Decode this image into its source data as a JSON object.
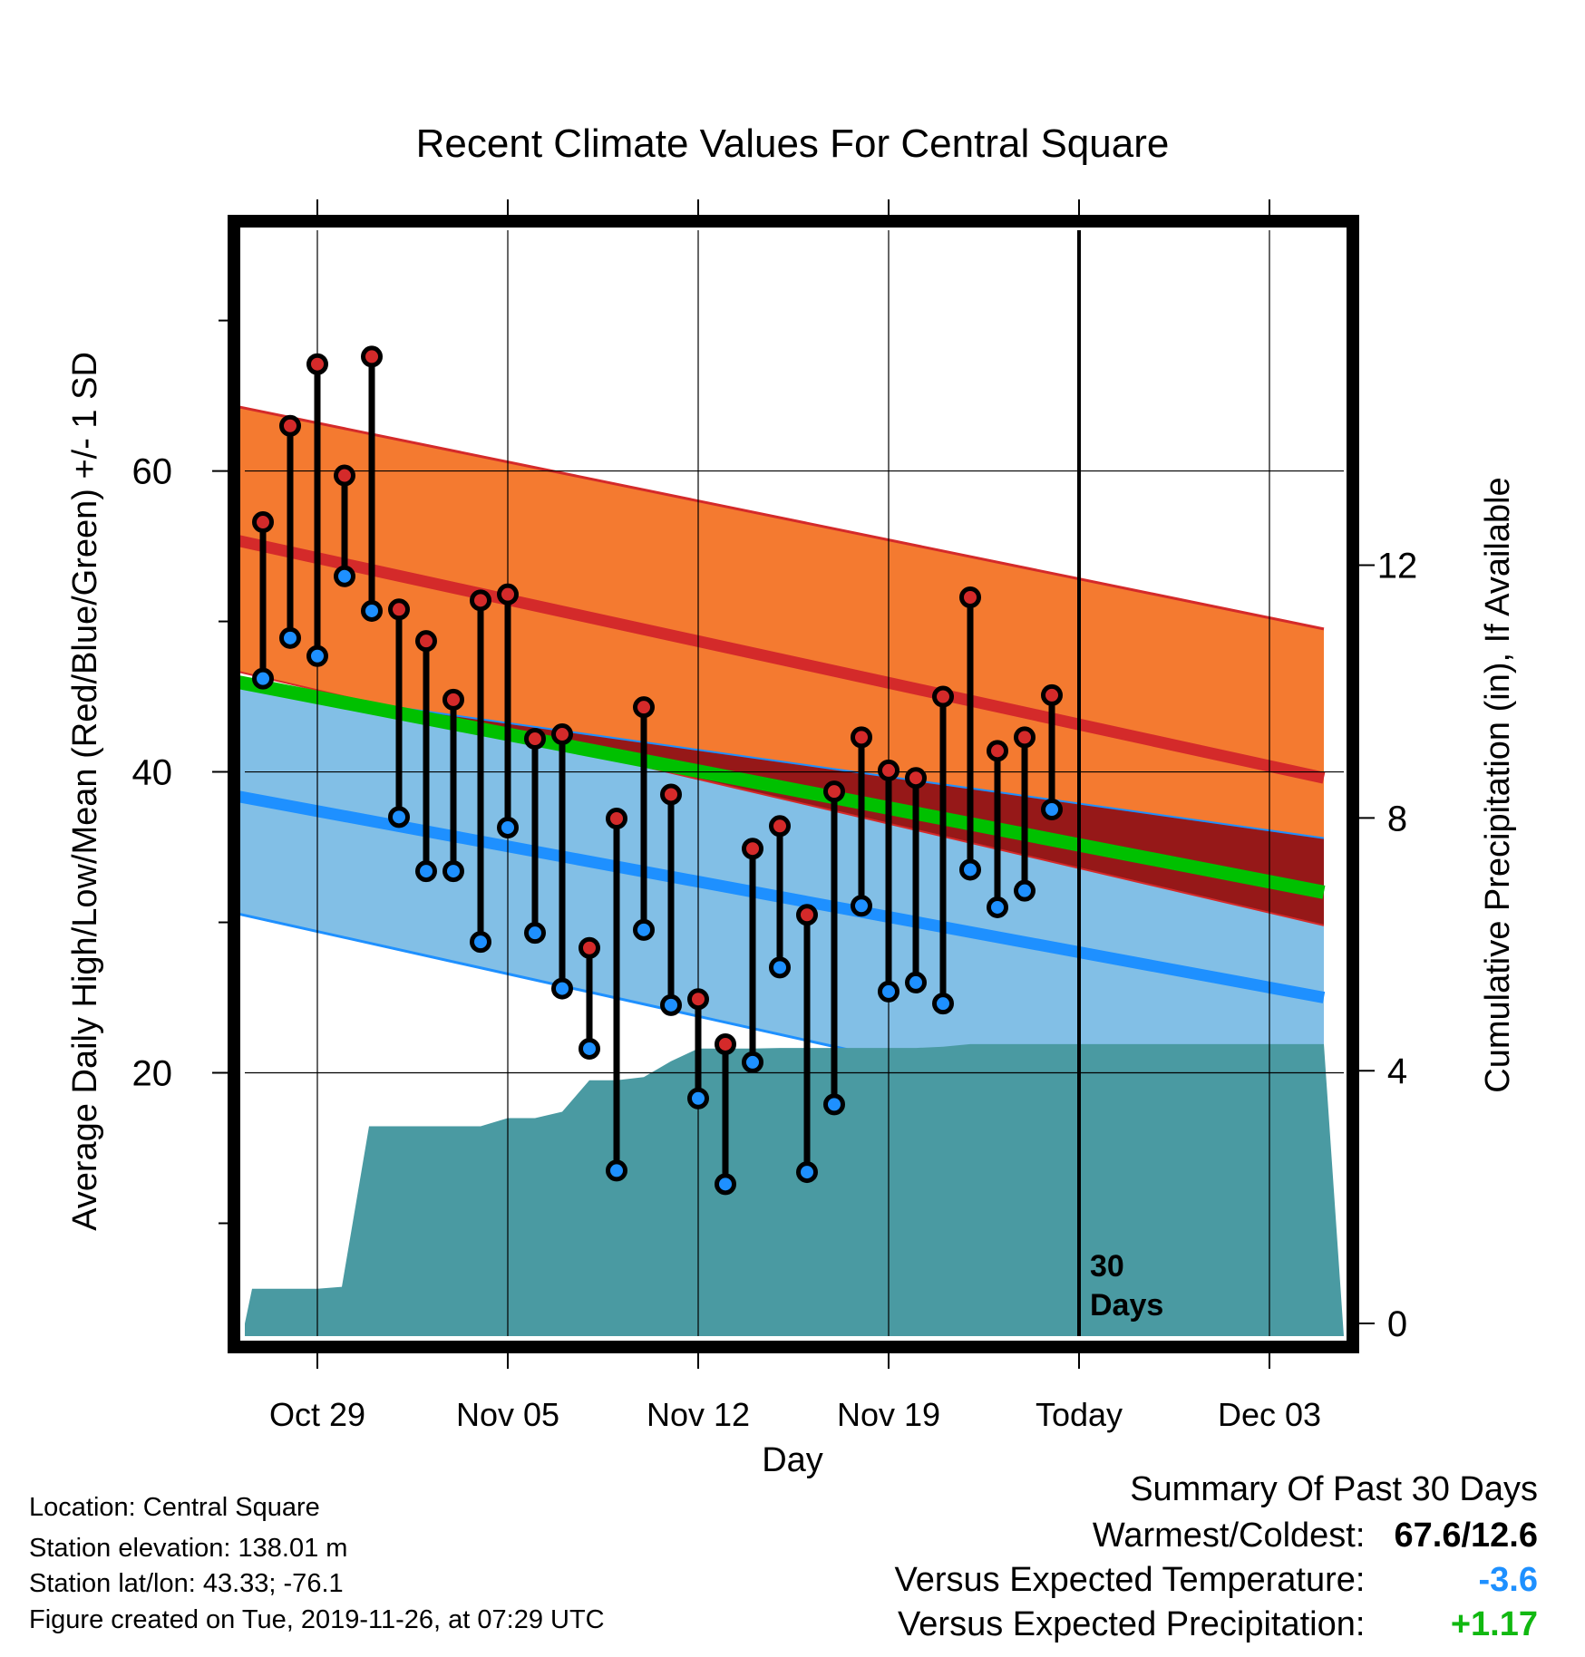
{
  "title": "Recent Climate Values For Central Square",
  "colors": {
    "high": "#d42a2a",
    "low": "#1e90ff",
    "mean_line": "#00c000",
    "normal_high_band": "#f47a30",
    "normal_low_band": "#82bfe6",
    "overlap_band": "#961818",
    "precip": "#4a9aa2",
    "frame": "#000000"
  },
  "chart_data": {
    "type": "line",
    "title": "Recent Climate Values For Central Square",
    "xlabel": "Day",
    "ylabel": "Average Daily High/Low/Mean (Red/Blue/Green) +/- 1 SD",
    "y2label": "Cumulative Precipitation (in), If Available",
    "x_ticks": [
      {
        "day": 0,
        "label": "Oct 29"
      },
      {
        "day": 7,
        "label": "Nov 05"
      },
      {
        "day": 14,
        "label": "Nov 12"
      },
      {
        "day": 21,
        "label": "Nov 19"
      },
      {
        "day": 28,
        "label": "Today"
      },
      {
        "day": 35,
        "label": "Dec 03"
      }
    ],
    "xlim": [
      -3,
      37
    ],
    "ylim": [
      2.5,
      76
    ],
    "y_ticks": [
      20,
      40,
      60
    ],
    "y_minor_ticks": [
      10,
      30,
      50,
      70
    ],
    "y2lim": [
      -0.2,
      17.3
    ],
    "y2_ticks": [
      0,
      4,
      8,
      12
    ],
    "grid": true,
    "today_marker": {
      "day": 28,
      "label_line1": "30",
      "label_line2": "Days"
    },
    "normals": {
      "high_mean": {
        "start": 55.4,
        "end": 39.6
      },
      "high_sd_top": {
        "start": 64.3,
        "end": 49.5
      },
      "high_sd_bottom": {
        "start": 46.7,
        "end": 29.8
      },
      "low_mean": {
        "start": 38.4,
        "end": 25.0
      },
      "low_sd_top": {
        "start": 45.8,
        "end": 35.6
      },
      "low_sd_bottom": {
        "start": 30.6,
        "end": 14.5
      },
      "overall_mean": {
        "start": 46.0,
        "end": 32.0
      }
    },
    "series": [
      {
        "name": "High",
        "x": [
          -2,
          -1,
          0,
          1,
          2,
          3,
          4,
          5,
          6,
          7,
          8,
          9,
          10,
          11,
          12,
          13,
          14,
          15,
          16,
          17,
          18,
          19,
          20,
          21,
          22,
          23,
          24,
          25,
          26,
          27
        ],
        "values": [
          56.6,
          63.0,
          67.1,
          59.7,
          67.6,
          50.8,
          48.7,
          44.8,
          51.4,
          51.8,
          42.2,
          42.5,
          28.3,
          36.9,
          44.3,
          38.5,
          24.9,
          21.9,
          34.9,
          36.4,
          30.5,
          38.7,
          42.3,
          40.1,
          39.6,
          45.0,
          51.6,
          41.4,
          42.3,
          45.1
        ]
      },
      {
        "name": "Low",
        "x": [
          -2,
          -1,
          0,
          1,
          2,
          3,
          4,
          5,
          6,
          7,
          8,
          9,
          10,
          11,
          12,
          13,
          14,
          15,
          16,
          17,
          18,
          19,
          20,
          21,
          22,
          23,
          24,
          25,
          26,
          27
        ],
        "values": [
          46.2,
          48.9,
          47.7,
          53.0,
          50.7,
          37.0,
          33.4,
          33.4,
          28.7,
          36.3,
          29.3,
          25.6,
          21.6,
          13.5,
          29.5,
          24.5,
          18.3,
          12.6,
          20.7,
          27.0,
          13.4,
          17.9,
          31.1,
          25.4,
          26.0,
          24.6,
          33.5,
          31.0,
          32.1,
          37.5
        ]
      },
      {
        "name": "Cumulative Precipitation",
        "x": [
          -3,
          -2.4,
          -1,
          0,
          0.9,
          1.9,
          3,
          4,
          5,
          6,
          7,
          8,
          9,
          10,
          11,
          12,
          13,
          14,
          15,
          16,
          17,
          18,
          19,
          20,
          21,
          22,
          23,
          24,
          25,
          26,
          27,
          28,
          37
        ],
        "values": [
          0.0,
          0.55,
          0.55,
          0.55,
          0.58,
          3.12,
          3.12,
          3.12,
          3.12,
          3.12,
          3.25,
          3.25,
          3.35,
          3.85,
          3.85,
          3.9,
          4.15,
          4.35,
          4.35,
          4.35,
          4.36,
          4.36,
          4.36,
          4.36,
          4.36,
          4.36,
          4.38,
          4.42,
          4.42,
          4.42,
          4.42,
          4.42,
          4.42
        ]
      }
    ]
  },
  "info": {
    "location": "Location: Central Square",
    "elevation": "Station elevation: 138.01 m",
    "latlon": "Station lat/lon: 43.33; -76.1",
    "created": "Figure created on Tue, 2019-11-26, at 07:29 UTC"
  },
  "summary": {
    "heading": "Summary Of Past 30 Days",
    "warmest_coldest_label": "Warmest/Coldest:",
    "warmest_coldest_value": "67.6/12.6",
    "temp_label": "Versus Expected Temperature:",
    "temp_value": "-3.6",
    "temp_color": "#1e90ff",
    "precip_label": "Versus Expected Precipitation:",
    "precip_value": "+1.17",
    "precip_color": "#11b811"
  }
}
